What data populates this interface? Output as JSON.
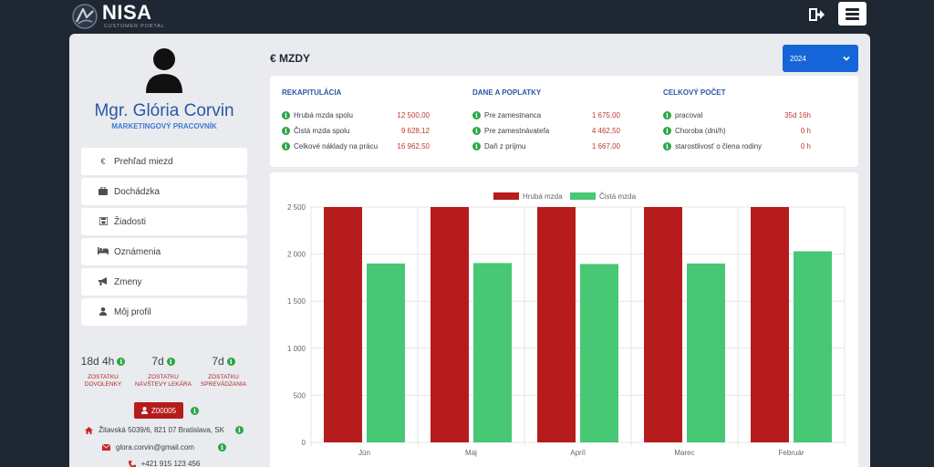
{
  "header": {
    "logo_title": "NISA",
    "logo_subtitle": "CUSTOMER PORTAL",
    "logout_icon": "sign-out-icon",
    "menu_icon": "hamburger-icon"
  },
  "profile": {
    "name": "Mgr. Glória Corvin",
    "role": "MARKETINGOVÝ PRACOVNÍK"
  },
  "nav": [
    {
      "icon": "euro-icon",
      "label": "Prehľad miezd"
    },
    {
      "icon": "briefcase-icon",
      "label": "Dochádzka"
    },
    {
      "icon": "save-icon",
      "label": "Žiadosti"
    },
    {
      "icon": "bed-icon",
      "label": "Oznámenia"
    },
    {
      "icon": "bullhorn-icon",
      "label": "Zmeny"
    },
    {
      "icon": "user-icon",
      "label": "Môj profil"
    }
  ],
  "stats": [
    {
      "value": "18d 4h",
      "label1": "ZOSTATKU",
      "label2": "DOVOLENKY"
    },
    {
      "value": "7d",
      "label1": "ZOSTATKU",
      "label2": "NÁVŠTEVY LEKÁRA"
    },
    {
      "value": "7d",
      "label1": "ZOSTATKU",
      "label2": "SPREVÁDZANIA"
    }
  ],
  "employee": {
    "id": "Z00005",
    "address": "Žitavská 5039/6, 821 07 Bratislava, SK",
    "email": "glora.corvin@gmail.com",
    "phone": "+421 915 123 456"
  },
  "main": {
    "title": "€ MZDY",
    "year": "2024"
  },
  "summary": {
    "recap": {
      "title": "REKAPITULÁCIA",
      "rows": [
        {
          "label": "Hrubá mzda spolu",
          "value": "12 500,00"
        },
        {
          "label": "Čistá mzda spolu",
          "value": "9 628,12"
        },
        {
          "label": "Celkové náklady na prácu",
          "value": "16 962,50"
        }
      ]
    },
    "taxes": {
      "title": "DANE A POPLATKY",
      "rows": [
        {
          "label": "Pre zamestnanca",
          "value": "1 675,00"
        },
        {
          "label": "Pre zamestnávateľa",
          "value": "4 462,50"
        },
        {
          "label": "Daň z príjmu",
          "value": "1 667,00"
        }
      ]
    },
    "totals": {
      "title": "CELKOVÝ POČET",
      "rows": [
        {
          "label": "pracoval",
          "value": "35d 16h"
        },
        {
          "label": "Choroba (dni/h)",
          "value": "0 h"
        },
        {
          "label": "starostlivosť o člena rodiny",
          "value": "0 h"
        }
      ]
    }
  },
  "colors": {
    "gross": "#b71c1c",
    "net": "#48c774",
    "accent": "#1565d8"
  },
  "chart_data": {
    "type": "bar",
    "categories": [
      "Jún",
      "Máj",
      "Apríl",
      "Marec",
      "Február"
    ],
    "series": [
      {
        "name": "Hrubá mzda",
        "values": [
          2500,
          2500,
          2500,
          2500,
          2500
        ]
      },
      {
        "name": "Čistá mzda",
        "values": [
          1900,
          1905,
          1895,
          1900,
          2030
        ]
      }
    ],
    "yticks": [
      "0",
      "500",
      "1 000",
      "1 500",
      "2 000",
      "2 500"
    ],
    "ylim": [
      0,
      2500
    ],
    "grid": true,
    "legend": "top-center"
  }
}
